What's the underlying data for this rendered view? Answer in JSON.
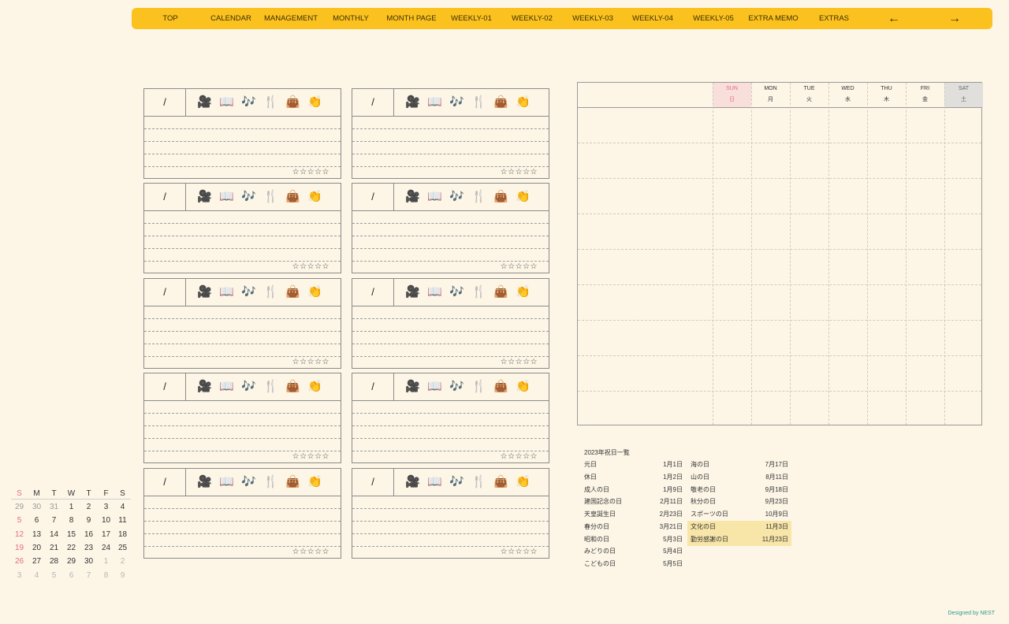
{
  "nav": {
    "items": [
      "TOP",
      "CALENDAR",
      "MANAGEMENT",
      "MONTHLY",
      "MONTH PAGE",
      "WEEKLY-01",
      "WEEKLY-02",
      "WEEKLY-03",
      "WEEKLY-04",
      "WEEKLY-05",
      "EXTRA MEMO",
      "EXTRAS"
    ],
    "prev": "←",
    "next": "→"
  },
  "card": {
    "date": "/",
    "icons": [
      "camera-icon",
      "book-icon",
      "music-icon",
      "food-icon",
      "bag-icon",
      "clap-icon"
    ],
    "icon_glyphs": [
      "🎥",
      "📖",
      "🎶",
      "🍴",
      "👜",
      "👏"
    ],
    "rating": "☆☆☆☆☆"
  },
  "weekly": {
    "days": [
      {
        "en": "SUN",
        "jp": "日"
      },
      {
        "en": "MON",
        "jp": "月"
      },
      {
        "en": "TUE",
        "jp": "火"
      },
      {
        "en": "WED",
        "jp": "水"
      },
      {
        "en": "THU",
        "jp": "木"
      },
      {
        "en": "FRI",
        "jp": "金"
      },
      {
        "en": "SAT",
        "jp": "土"
      }
    ]
  },
  "holidays": {
    "title": "2023年祝日一覧",
    "left": [
      {
        "name": "元日",
        "date": "1月1日"
      },
      {
        "name": "休日",
        "date": "1月2日"
      },
      {
        "name": "成人の日",
        "date": "1月9日"
      },
      {
        "name": "建国記念の日",
        "date": "2月11日"
      },
      {
        "name": "天皇誕生日",
        "date": "2月23日"
      },
      {
        "name": "春分の日",
        "date": "3月21日"
      },
      {
        "name": "昭和の日",
        "date": "5月3日"
      },
      {
        "name": "みどりの日",
        "date": "5月4日"
      },
      {
        "name": "こどもの日",
        "date": "5月5日"
      }
    ],
    "right": [
      {
        "name": "海の日",
        "date": "7月17日"
      },
      {
        "name": "山の日",
        "date": "8月11日"
      },
      {
        "name": "敬老の日",
        "date": "9月18日"
      },
      {
        "name": "秋分の日",
        "date": "9月23日"
      },
      {
        "name": "スポーツの日",
        "date": "10月9日"
      },
      {
        "name": "文化の日",
        "date": "11月3日"
      },
      {
        "name": "勤労感謝の日",
        "date": "11月23日"
      }
    ],
    "highlight_color": "#f8e6a8"
  },
  "mini_calendar": {
    "headers": [
      "S",
      "M",
      "T",
      "W",
      "T",
      "F",
      "S"
    ],
    "weeks": [
      [
        "29",
        "30",
        "31",
        "1",
        "2",
        "3",
        "4"
      ],
      [
        "5",
        "6",
        "7",
        "8",
        "9",
        "10",
        "11"
      ],
      [
        "12",
        "13",
        "14",
        "15",
        "16",
        "17",
        "18"
      ],
      [
        "19",
        "20",
        "21",
        "22",
        "23",
        "24",
        "25"
      ],
      [
        "26",
        "27",
        "28",
        "29",
        "30",
        "1",
        "2"
      ],
      [
        "3",
        "4",
        "5",
        "6",
        "7",
        "8",
        "9"
      ]
    ]
  },
  "credit": "Designed by NEST",
  "colors": {
    "background": "#fdf6e7",
    "nav": "#fbc21f",
    "sunday": "#e26d7e",
    "sunday_bg": "#f9dfdb",
    "saturday_bg": "#e1dfdc",
    "credit": "#2f9a8a"
  }
}
